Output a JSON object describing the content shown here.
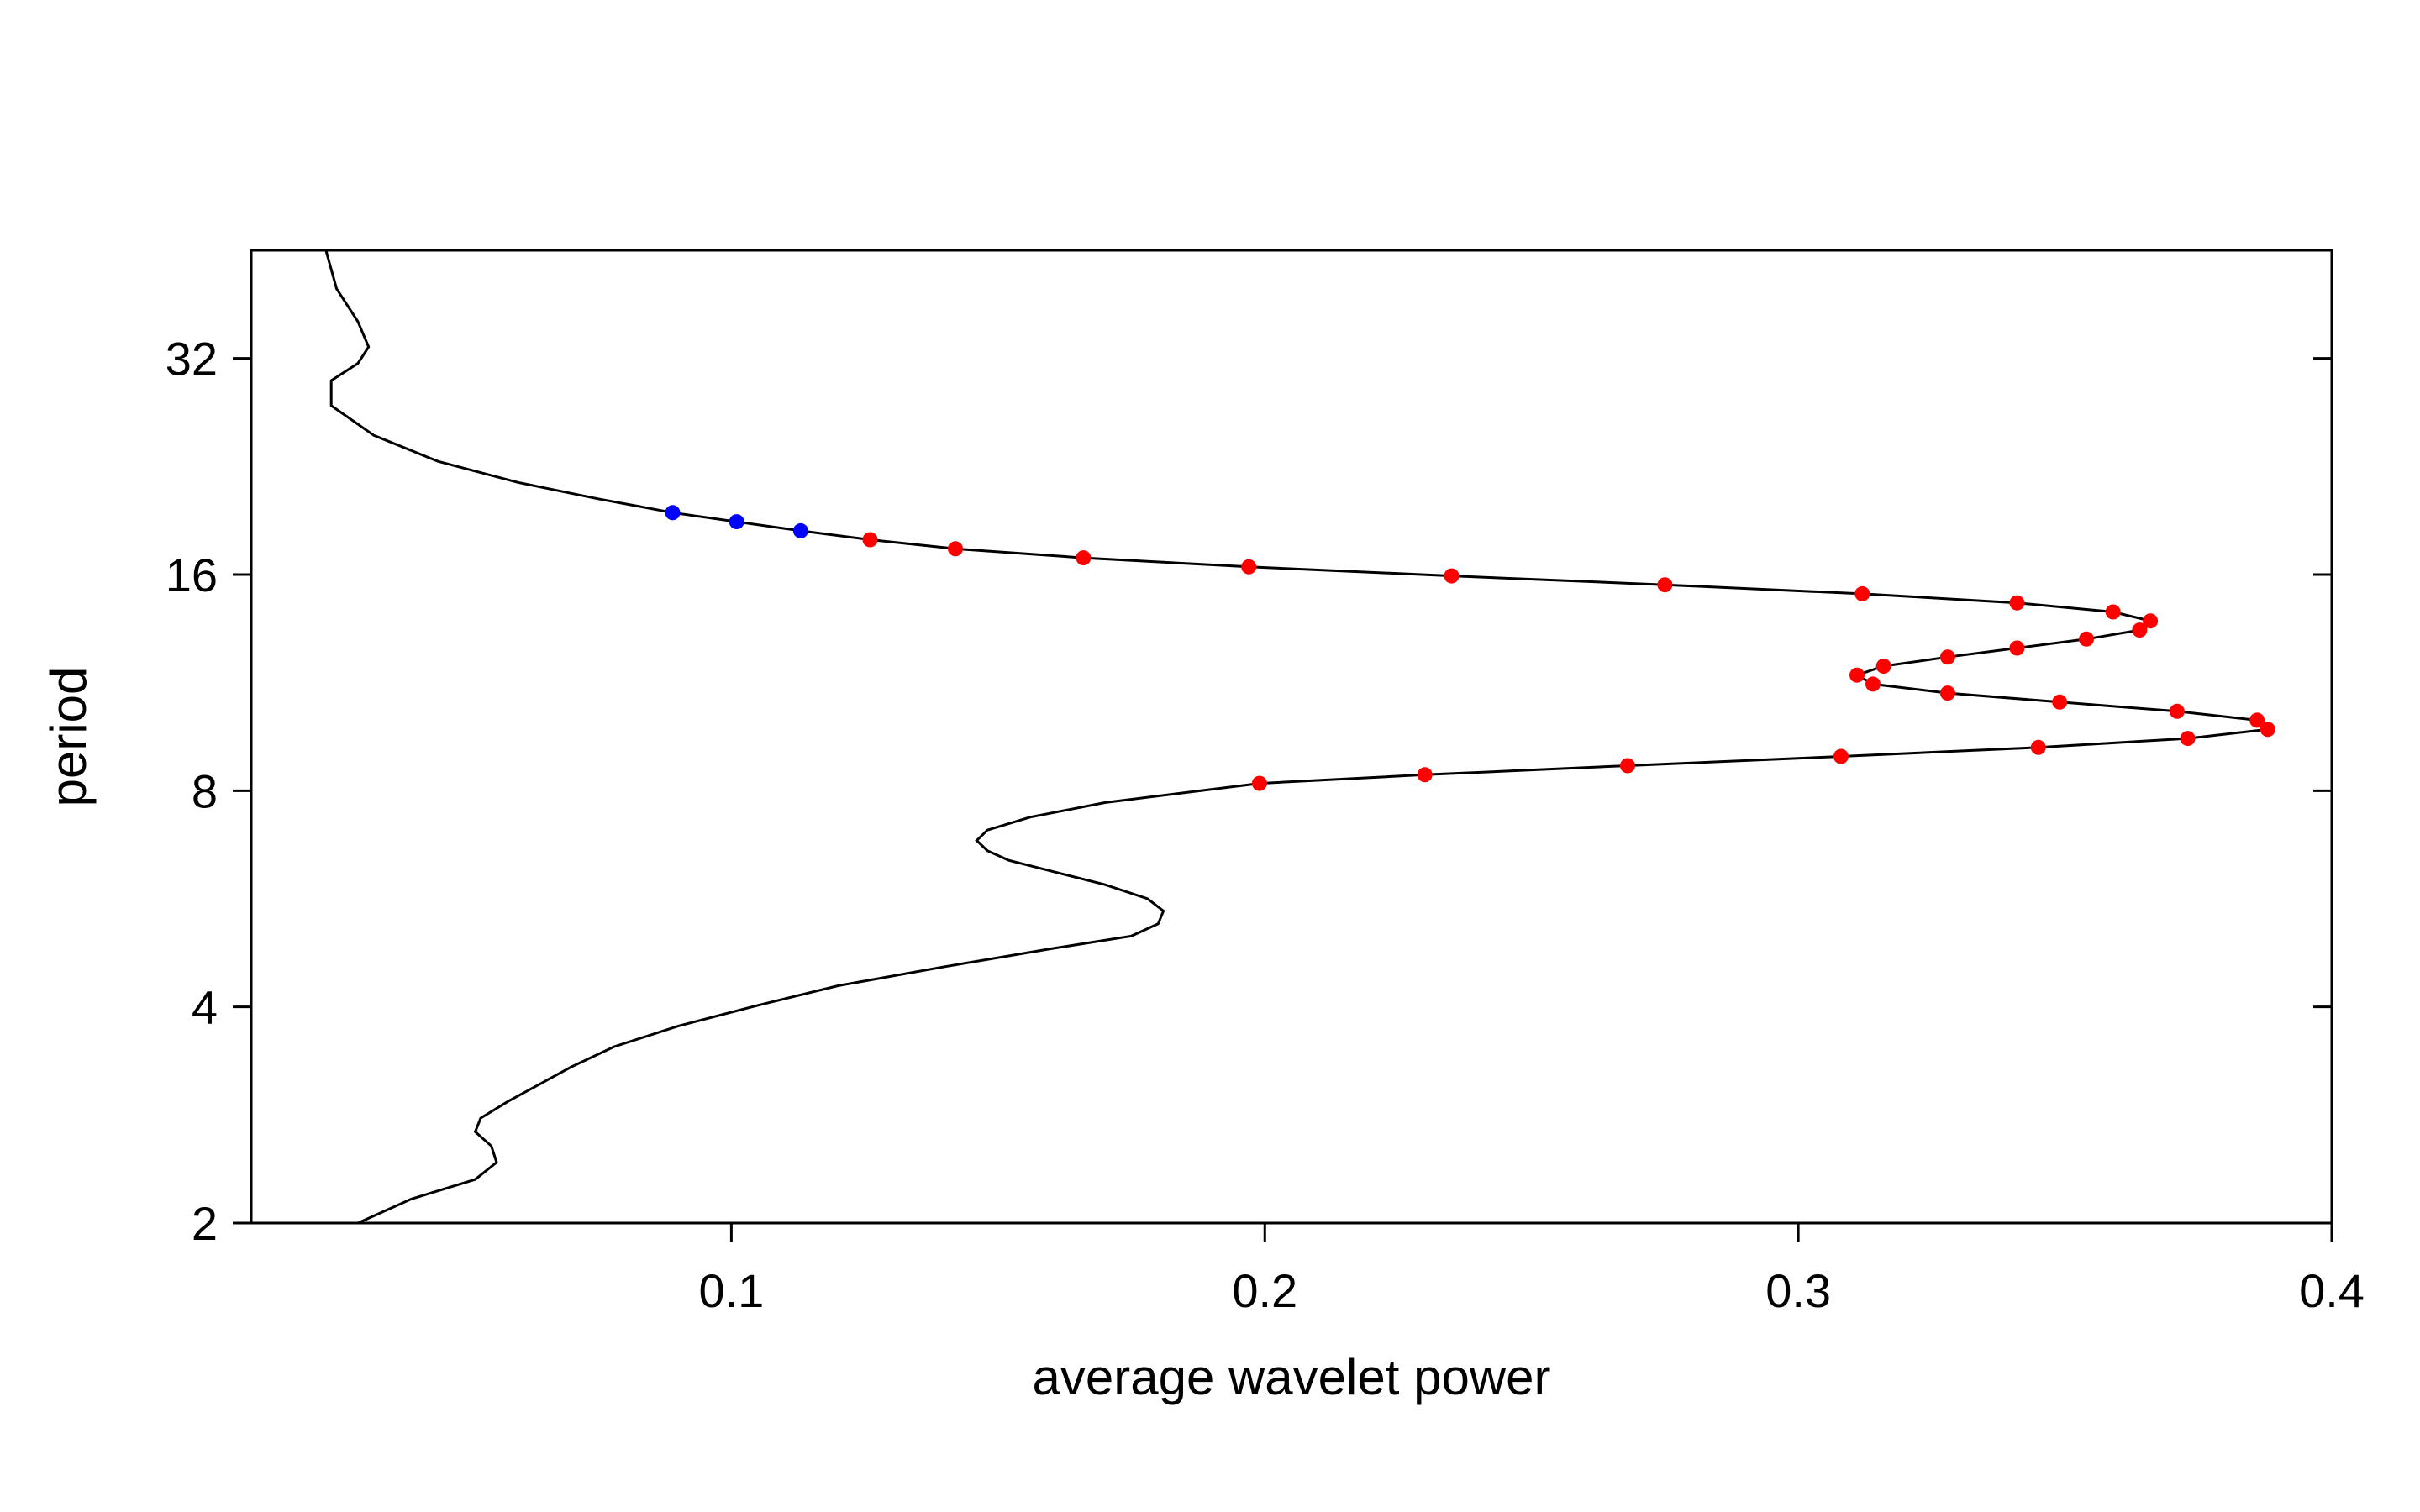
{
  "chart_data": {
    "type": "line",
    "title": "",
    "xlabel": "average wavelet power",
    "ylabel": "period",
    "xlim": [
      0.01,
      0.4
    ],
    "ylim": [
      2,
      45.25
    ],
    "y_scale": "log2",
    "x_ticks": [
      0.1,
      0.2,
      0.3,
      0.4
    ],
    "x_tick_labels": [
      "0.1",
      "0.2",
      "0.3",
      "0.4"
    ],
    "y_ticks": [
      2,
      4,
      8,
      16,
      32
    ],
    "y_tick_labels": [
      "2",
      "4",
      "8",
      "16",
      "32"
    ],
    "grid": false,
    "legend": "none",
    "colors": {
      "line": "#000000",
      "red_points": "#ff0000",
      "blue_points": "#0000ff",
      "frame": "#000000"
    },
    "series": [
      {
        "type": "line",
        "x": [
          0.03,
          0.04,
          0.052,
          0.056,
          0.055,
          0.052,
          0.053,
          0.058,
          0.064,
          0.07,
          0.078,
          0.09,
          0.105,
          0.12,
          0.14,
          0.16,
          0.175,
          0.18,
          0.181,
          0.178,
          0.17,
          0.16,
          0.152,
          0.148,
          0.146,
          0.148,
          0.156,
          0.17,
          0.185,
          0.199,
          0.23,
          0.268,
          0.308,
          0.345,
          0.373,
          0.388,
          0.386,
          0.371,
          0.349,
          0.328,
          0.314,
          0.311,
          0.316,
          0.328,
          0.341,
          0.354,
          0.364,
          0.366,
          0.359,
          0.341,
          0.312,
          0.275,
          0.235,
          0.197,
          0.166,
          0.142,
          0.126,
          0.113,
          0.101,
          0.089,
          0.075,
          0.06,
          0.045,
          0.033,
          0.025,
          0.025,
          0.03,
          0.032,
          0.03,
          0.026,
          0.024
        ],
        "y": [
          2.0,
          2.16,
          2.3,
          2.43,
          2.56,
          2.68,
          2.8,
          2.95,
          3.12,
          3.3,
          3.52,
          3.76,
          4.02,
          4.28,
          4.55,
          4.82,
          5.02,
          5.22,
          5.44,
          5.66,
          5.92,
          6.18,
          6.4,
          6.6,
          6.82,
          7.05,
          7.35,
          7.7,
          7.95,
          8.19,
          8.42,
          8.67,
          8.93,
          9.19,
          9.46,
          9.74,
          10.03,
          10.32,
          10.63,
          10.94,
          11.26,
          11.59,
          11.93,
          12.28,
          12.64,
          13.01,
          13.39,
          13.79,
          14.19,
          14.61,
          15.04,
          15.48,
          15.93,
          16.4,
          16.88,
          17.38,
          17.89,
          18.41,
          18.95,
          19.51,
          20.4,
          21.5,
          23.0,
          25.0,
          27.5,
          29.8,
          31.5,
          33.2,
          36.0,
          40.0,
          45.25
        ]
      },
      {
        "type": "scatter",
        "marker_color": "red",
        "x": [
          0.199,
          0.23,
          0.268,
          0.308,
          0.345,
          0.373,
          0.388,
          0.386,
          0.371,
          0.349,
          0.328,
          0.314,
          0.311,
          0.316,
          0.328,
          0.341,
          0.354,
          0.364,
          0.366,
          0.359,
          0.341,
          0.312,
          0.275,
          0.235,
          0.197,
          0.166,
          0.142,
          0.126
        ],
        "y": [
          8.19,
          8.42,
          8.67,
          8.93,
          9.19,
          9.46,
          9.74,
          10.03,
          10.32,
          10.63,
          10.94,
          11.26,
          11.59,
          11.93,
          12.28,
          12.64,
          13.01,
          13.39,
          13.79,
          14.19,
          14.61,
          15.04,
          15.48,
          15.93,
          16.4,
          16.88,
          17.38,
          17.89
        ]
      },
      {
        "type": "scatter",
        "marker_color": "blue",
        "x": [
          0.113,
          0.101,
          0.089
        ],
        "y": [
          18.41,
          18.95,
          19.51
        ]
      }
    ]
  }
}
